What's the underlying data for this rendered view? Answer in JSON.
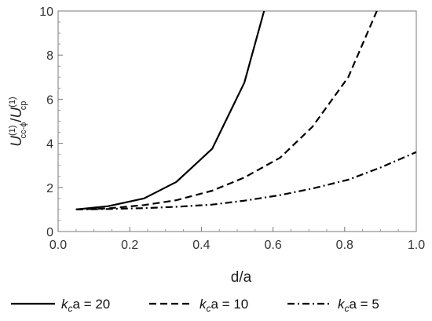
{
  "chart_data": {
    "type": "line",
    "title": "",
    "xlabel": "d/a",
    "ylabel": {
      "base1": "U",
      "sup1": "(1)",
      "sub1": "cc-ϕ",
      "slash": "/",
      "base2": "U",
      "sup2": "(1)",
      "sub2": "cp"
    },
    "xlim": [
      0.0,
      1.0
    ],
    "ylim": [
      0,
      10
    ],
    "x_ticks": [
      0.0,
      0.2,
      0.4,
      0.6,
      0.8,
      1.0
    ],
    "x_tick_labels": [
      "0.0",
      "0.2",
      "0.4",
      "0.6",
      "0.8",
      "1.0"
    ],
    "y_ticks": [
      0,
      2,
      4,
      6,
      8,
      10
    ],
    "y_tick_labels": [
      "0",
      "2",
      "4",
      "6",
      "8",
      "10"
    ],
    "grid": false,
    "legend_position": "bottom",
    "series": [
      {
        "name": "k_c a = 20",
        "legend_k": "k",
        "legend_sub": "c",
        "legend_rest": "a = 20",
        "style": "solid",
        "x": [
          0.05,
          0.14,
          0.24,
          0.33,
          0.43,
          0.52,
          0.575
        ],
        "y": [
          1.0,
          1.15,
          1.5,
          2.25,
          3.75,
          6.75,
          10.0
        ]
      },
      {
        "name": "k_c a = 10",
        "legend_k": "k",
        "legend_sub": "c",
        "legend_rest": "a = 10",
        "style": "dashed",
        "x": [
          0.05,
          0.14,
          0.24,
          0.33,
          0.43,
          0.52,
          0.62,
          0.71,
          0.81,
          0.89
        ],
        "y": [
          1.0,
          1.05,
          1.2,
          1.42,
          1.85,
          2.45,
          3.35,
          4.75,
          7.0,
          10.0
        ]
      },
      {
        "name": "k_c a = 5",
        "legend_k": "k",
        "legend_sub": "c",
        "legend_rest": "a = 5",
        "style": "dashdot",
        "x": [
          0.05,
          0.14,
          0.24,
          0.33,
          0.43,
          0.52,
          0.62,
          0.71,
          0.81,
          0.9,
          1.0
        ],
        "y": [
          1.0,
          1.02,
          1.06,
          1.12,
          1.22,
          1.4,
          1.65,
          1.95,
          2.35,
          2.9,
          3.6
        ]
      }
    ]
  }
}
